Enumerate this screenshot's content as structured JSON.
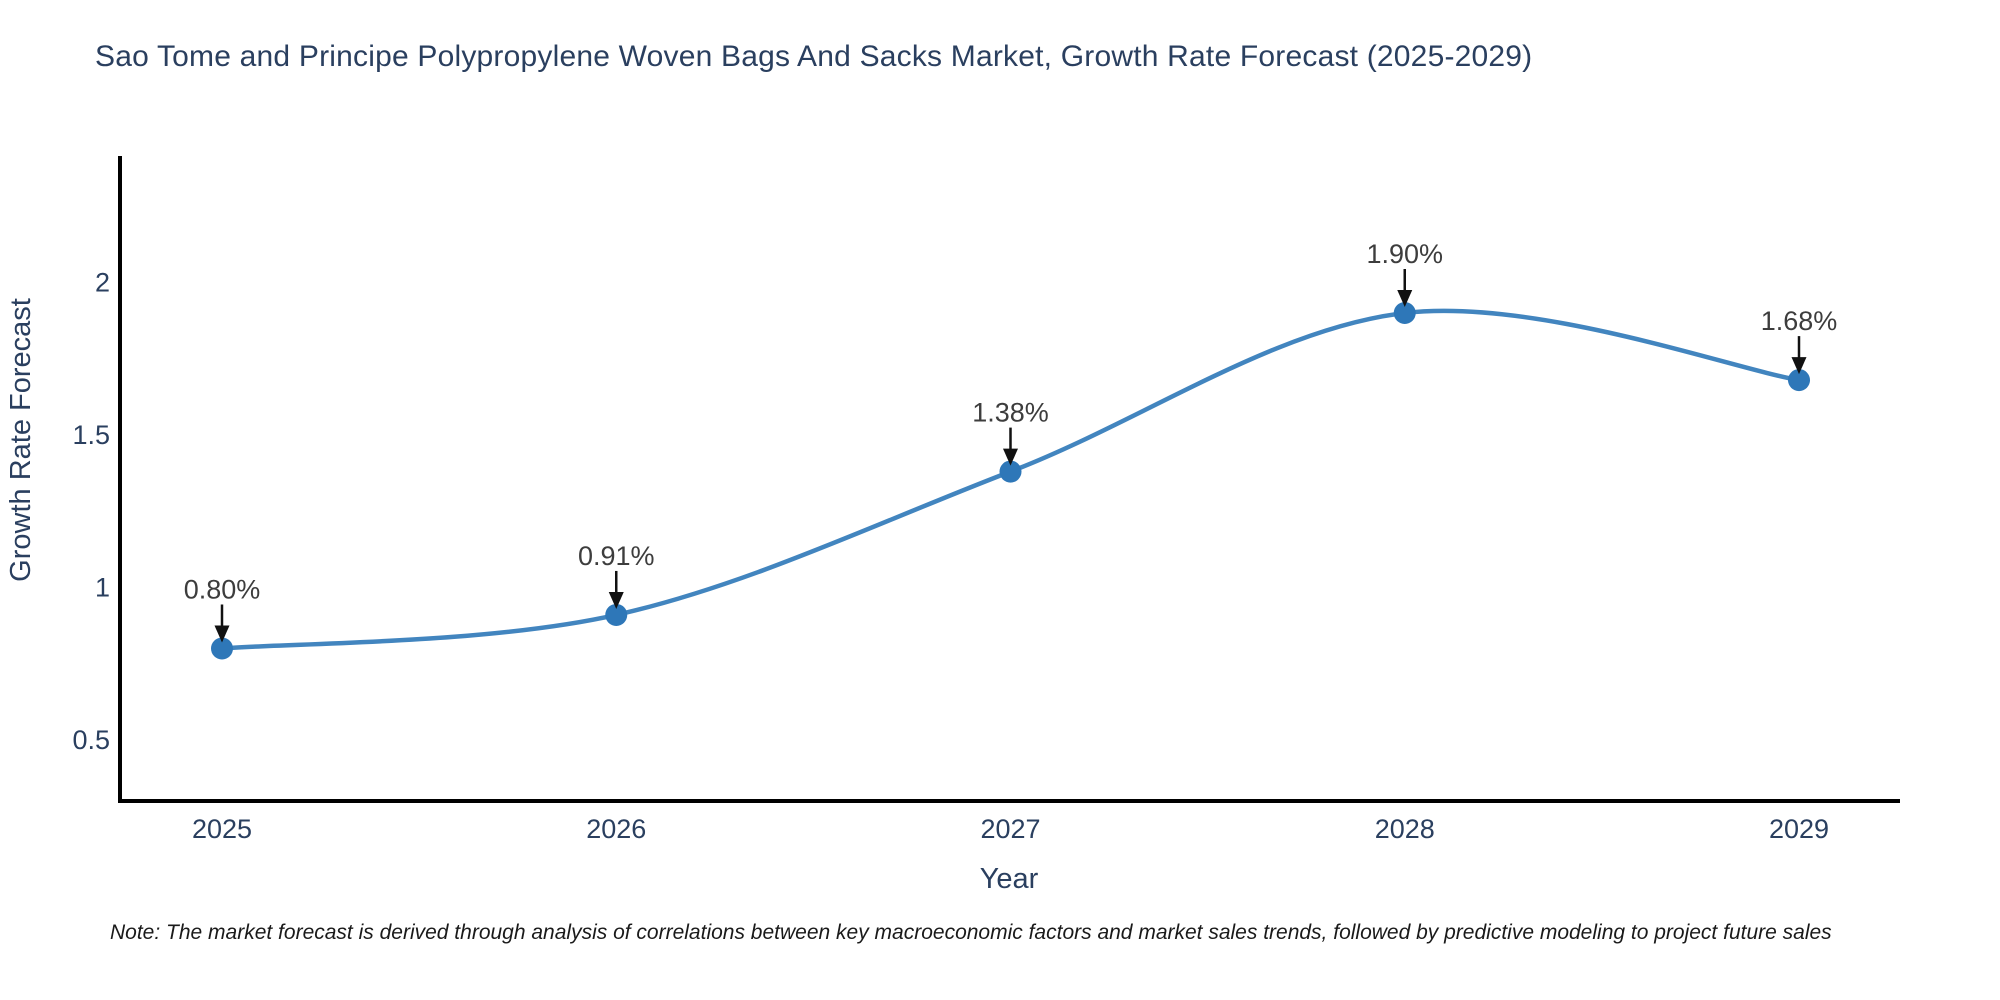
{
  "header": {
    "title": "Sao Tome and Principe Polypropylene Woven Bags And Sacks Market, Growth Rate Forecast (2025-2029)"
  },
  "footer": {
    "note": "Note: The market forecast is derived through analysis of correlations between key macroeconomic factors and market sales trends, followed by predictive modeling to project future sales"
  },
  "colors": {
    "line": "#4285bf",
    "marker": "#2e77b8",
    "axis": "#000000",
    "title_text": "#2a3f5f",
    "tick_text": "#2a3f5f",
    "annotation_text": "#3d3d3d",
    "arrow": "#111111",
    "background": "#ffffff"
  },
  "chart_data": {
    "type": "line",
    "title": "Sao Tome and Principe Polypropylene Woven Bags And Sacks Market, Growth Rate Forecast (2025-2029)",
    "xlabel": "Year",
    "ylabel": "Growth Rate Forecast",
    "categories": [
      "2025",
      "2026",
      "2027",
      "2028",
      "2029"
    ],
    "values": [
      0.8,
      0.91,
      1.38,
      1.9,
      1.68
    ],
    "point_labels": [
      "0.80%",
      "0.91%",
      "1.38%",
      "1.90%",
      "1.68%"
    ],
    "yticks": [
      0.5,
      1,
      1.5,
      2
    ],
    "ylim": [
      0.3,
      2.41
    ],
    "line_shape": "spline",
    "grid": false,
    "legend_position": "none",
    "markers": true,
    "annotations_arrow": "down"
  }
}
